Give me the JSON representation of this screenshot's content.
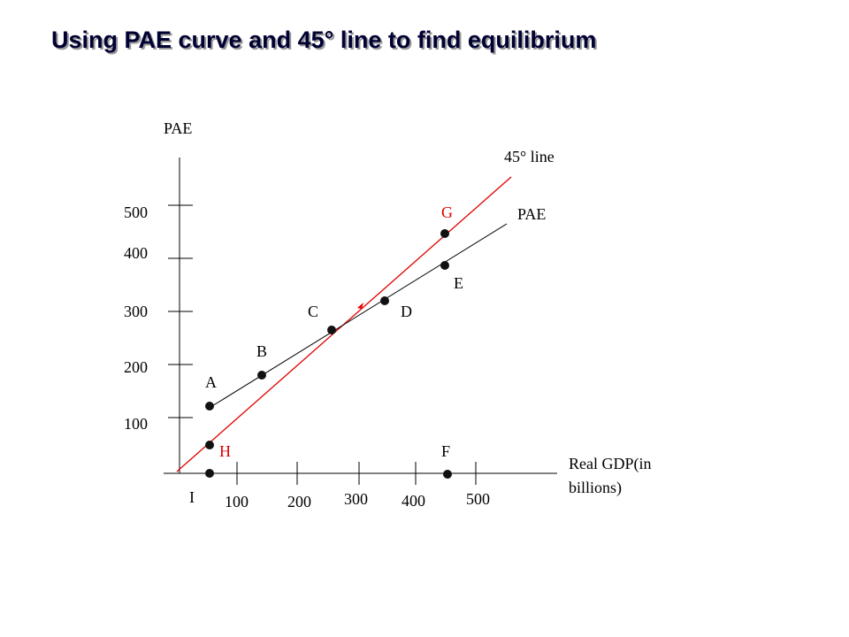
{
  "title": "Using PAE curve and 45° line to find equilibrium",
  "axes": {
    "y_label": "PAE",
    "x_label": [
      "Real GDP(in",
      "billions)"
    ],
    "y_ticks": [
      "500",
      "400",
      "300",
      "200",
      "100"
    ],
    "x_ticks": [
      "100",
      "200",
      "300",
      "400",
      "500"
    ]
  },
  "lines": {
    "forty_five": "45° line",
    "pae": "PAE"
  },
  "points": [
    "A",
    "B",
    "C",
    "D",
    "E",
    "F",
    "G",
    "H",
    "I"
  ]
}
